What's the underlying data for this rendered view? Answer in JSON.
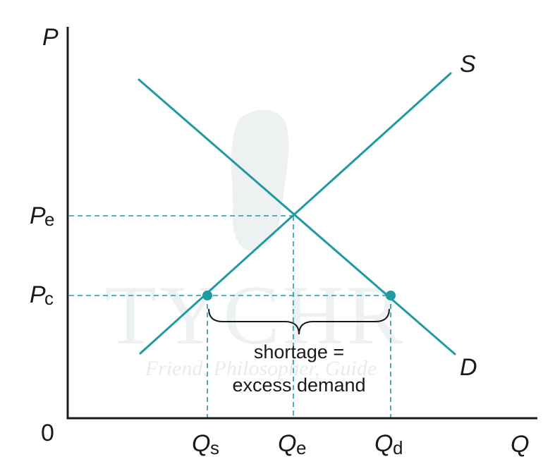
{
  "watermark": {
    "brand": "TYCHR",
    "tagline": "Friend, Philosopher, Guide"
  },
  "axes": {
    "y_label": "P",
    "x_label": "Q",
    "origin": "0"
  },
  "curves": {
    "supply_label": "S",
    "demand_label": "D"
  },
  "price_labels": {
    "pe_main": "P",
    "pe_sub": "e",
    "pc_main": "P",
    "pc_sub": "c"
  },
  "quantity_labels": {
    "qs_main": "Q",
    "qs_sub": "s",
    "qe_main": "Q",
    "qe_sub": "e",
    "qd_main": "Q",
    "qd_sub": "d"
  },
  "annotation": {
    "line1": "shortage =",
    "line2": "excess demand"
  },
  "colors": {
    "curve": "#1e9aa0",
    "axis": "#1a1a1a"
  }
}
